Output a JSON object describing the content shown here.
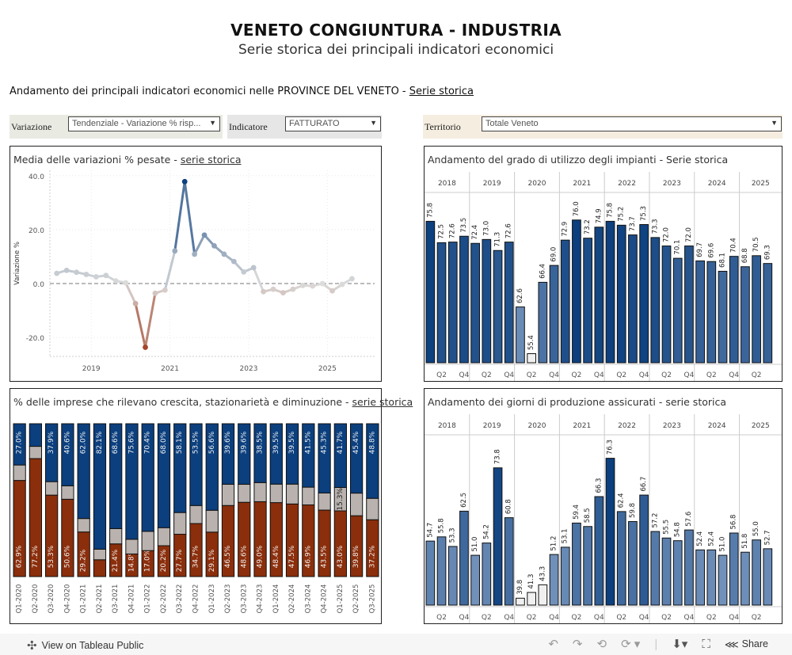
{
  "header": {
    "title": "VENETO  CONGIUNTURA - INDUSTRIA",
    "subtitle": "Serie storica dei principali indicatori economici",
    "section_title": "Andamento dei principali indicatori economici nelle PROVINCE DEL VENETO - ",
    "section_link": "Serie storica"
  },
  "filters": {
    "variazione": {
      "label": "Variazione",
      "value": "Tendenziale - Variazione % risp..."
    },
    "indicatore": {
      "label": "Indicatore",
      "value": "FATTURATO"
    },
    "territorio": {
      "label": "Territorio",
      "value": "Totale Veneto"
    }
  },
  "colors": {
    "filter_bg_1": "#e9ebe3",
    "filter_bg_2": "#e6e6e6",
    "filter_bg_3": "#f5ede0",
    "positive": "#0b3f7e",
    "negative": "#8b2e0b",
    "neutral": "#b9b2ae"
  },
  "panels": {
    "line": {
      "title": "Media delle variazioni % pesate - ",
      "title_link": "serie storica"
    },
    "stacked": {
      "title": "% delle imprese che rilevano crescita, stazionarietà e diminuzione - ",
      "title_link": "serie storica"
    },
    "impianti": {
      "title": "Andamento del grado di utilizzo degli impianti - Serie storica"
    },
    "giorni": {
      "title": "Andamento dei giorni di produzione assicurati - serie storica"
    }
  },
  "toolbar": {
    "view_label": "View on Tableau Public",
    "share_label": "Share"
  },
  "chart_data": [
    {
      "type": "line",
      "title": "Media delle variazioni % pesate - serie storica",
      "xlabel": "",
      "ylabel": "Variazione %",
      "ylim": [
        -27,
        42
      ],
      "yticks": [
        -20,
        0,
        20,
        40
      ],
      "ytick_labels": [
        "-20.0",
        "0.0",
        "20.0",
        "40.0"
      ],
      "xticks": [
        2019,
        2021,
        2023,
        2025
      ],
      "xtick_labels": [
        "2019",
        "2021",
        "2023",
        "2025"
      ],
      "xlim": [
        2017.95,
        2026.2
      ],
      "grid": true,
      "x": [
        2018.125,
        2018.375,
        2018.625,
        2018.875,
        2019.125,
        2019.375,
        2019.625,
        2019.875,
        2020.125,
        2020.375,
        2020.625,
        2020.875,
        2021.125,
        2021.375,
        2021.625,
        2021.875,
        2022.125,
        2022.375,
        2022.625,
        2022.875,
        2023.125,
        2023.375,
        2023.625,
        2023.875,
        2024.125,
        2024.375,
        2024.625,
        2024.875,
        2025.125,
        2025.375,
        2025.625
      ],
      "values": [
        3.8,
        4.9,
        4.2,
        3.4,
        2.5,
        3.0,
        1.0,
        0.3,
        -7.4,
        -23.6,
        -3.6,
        -2.4,
        12.1,
        37.8,
        10.9,
        18.0,
        14.0,
        10.9,
        8.2,
        4.3,
        5.9,
        -3.0,
        -2.1,
        -3.4,
        -2.1,
        -0.7,
        -0.9,
        0.0,
        -2.7,
        -0.3,
        1.8
      ]
    },
    {
      "type": "bar",
      "title": "% delle imprese che rilevano crescita, stazionarietà e diminuzione - serie storica",
      "stacked": true,
      "categories": [
        "Q1-2020",
        "Q2-2020",
        "Q3-2020",
        "Q4-2020",
        "Q1-2021",
        "Q2-2021",
        "Q3-2021",
        "Q4-2021",
        "Q1-2022",
        "Q2-2022",
        "Q3-2022",
        "Q4-2022",
        "Q1-2023",
        "Q2-2023",
        "Q3-2023",
        "Q4-2023",
        "Q1-2024",
        "Q2-2024",
        "Q3-2024",
        "Q4-2024",
        "Q1-2025",
        "Q2-2025",
        "Q3-2025"
      ],
      "series": [
        {
          "name": "diminuzione",
          "color": "#8b2e0b",
          "values": [
            62.9,
            77.2,
            53.3,
            50.6,
            29.2,
            11.0,
            21.4,
            14.8,
            17.0,
            20.2,
            27.7,
            34.7,
            29.1,
            46.5,
            48.6,
            49.0,
            48.4,
            47.5,
            46.9,
            43.5,
            43.0,
            39.8,
            37.2
          ]
        },
        {
          "name": "stazionarietà",
          "color": "#b9b2ae",
          "values": [
            10.1,
            8.0,
            8.8,
            8.8,
            8.8,
            6.9,
            10.0,
            9.6,
            12.6,
            11.8,
            14.2,
            11.8,
            14.3,
            13.9,
            11.8,
            12.5,
            12.1,
            13.0,
            11.6,
            11.2,
            15.3,
            14.8,
            14.0
          ]
        },
        {
          "name": "crescita",
          "color": "#0b3f7e",
          "values": [
            27.0,
            14.8,
            37.9,
            40.6,
            62.0,
            82.1,
            68.6,
            75.6,
            70.4,
            68.0,
            58.1,
            53.5,
            56.6,
            39.6,
            39.6,
            38.5,
            39.5,
            39.5,
            41.5,
            45.3,
            41.7,
            45.4,
            48.8
          ]
        }
      ],
      "labels_shown": {
        "diminuzione": [
          true,
          true,
          true,
          true,
          true,
          false,
          true,
          true,
          true,
          true,
          true,
          true,
          true,
          true,
          true,
          true,
          true,
          true,
          true,
          true,
          true,
          true,
          true
        ],
        "stazionarietà": [
          false,
          false,
          false,
          false,
          false,
          false,
          false,
          false,
          false,
          false,
          false,
          false,
          false,
          false,
          false,
          false,
          false,
          false,
          false,
          false,
          true,
          false,
          false
        ],
        "crescita": [
          true,
          false,
          true,
          true,
          true,
          true,
          true,
          true,
          true,
          true,
          true,
          true,
          true,
          true,
          true,
          true,
          true,
          true,
          true,
          true,
          true,
          true,
          true
        ]
      },
      "ylim": [
        0,
        100
      ]
    },
    {
      "type": "bar",
      "title": "Andamento del grado di utilizzo degli impianti - Serie storica",
      "years": [
        "2018",
        "2019",
        "2020",
        "2021",
        "2022",
        "2023",
        "2024",
        "2025"
      ],
      "quarter_labels": [
        "Q2",
        "Q4"
      ],
      "categories": [
        "2018Q1",
        "2018Q2",
        "2018Q3",
        "2018Q4",
        "2019Q1",
        "2019Q2",
        "2019Q3",
        "2019Q4",
        "2020Q1",
        "2020Q2",
        "2020Q3",
        "2020Q4",
        "2021Q1",
        "2021Q2",
        "2021Q3",
        "2021Q4",
        "2022Q1",
        "2022Q2",
        "2022Q3",
        "2022Q4",
        "2023Q1",
        "2023Q2",
        "2023Q3",
        "2023Q4",
        "2024Q1",
        "2024Q2",
        "2024Q3",
        "2024Q4",
        "2025Q1",
        "2025Q2",
        "2025Q3"
      ],
      "values": [
        75.8,
        72.5,
        72.6,
        73.5,
        72.4,
        73.0,
        71.3,
        72.6,
        62.6,
        55.4,
        66.4,
        69.0,
        72.9,
        76.0,
        73.2,
        74.9,
        75.8,
        75.2,
        73.7,
        75.3,
        73.3,
        72.0,
        70.1,
        72.0,
        69.7,
        69.6,
        68.1,
        70.4,
        68.8,
        70.5,
        69.3
      ],
      "ylim": [
        54,
        80
      ]
    },
    {
      "type": "bar",
      "title": "Andamento dei giorni di produzione assicurati - serie storica",
      "years": [
        "2018",
        "2019",
        "2020",
        "2021",
        "2022",
        "2023",
        "2024",
        "2025"
      ],
      "quarter_labels": [
        "Q2",
        "Q4"
      ],
      "categories": [
        "2018Q1",
        "2018Q2",
        "2018Q3",
        "2018Q4",
        "2019Q1",
        "2019Q2",
        "2019Q3",
        "2019Q4",
        "2020Q1",
        "2020Q2",
        "2020Q3",
        "2020Q4",
        "2021Q1",
        "2021Q2",
        "2021Q3",
        "2021Q4",
        "2022Q1",
        "2022Q2",
        "2022Q3",
        "2022Q4",
        "2023Q1",
        "2023Q2",
        "2023Q3",
        "2023Q4",
        "2024Q1",
        "2024Q2",
        "2024Q3",
        "2024Q4",
        "2025Q1",
        "2025Q2",
        "2025Q3"
      ],
      "values": [
        54.7,
        55.8,
        53.3,
        62.5,
        51.0,
        54.2,
        73.8,
        60.8,
        39.8,
        41.3,
        43.3,
        51.2,
        53.1,
        59.4,
        58.5,
        66.3,
        76.3,
        62.4,
        59.8,
        66.7,
        57.2,
        55.5,
        54.8,
        57.6,
        52.4,
        52.4,
        51.0,
        56.8,
        51.8,
        55.0,
        52.7
      ],
      "ylim": [
        38,
        82
      ]
    }
  ]
}
